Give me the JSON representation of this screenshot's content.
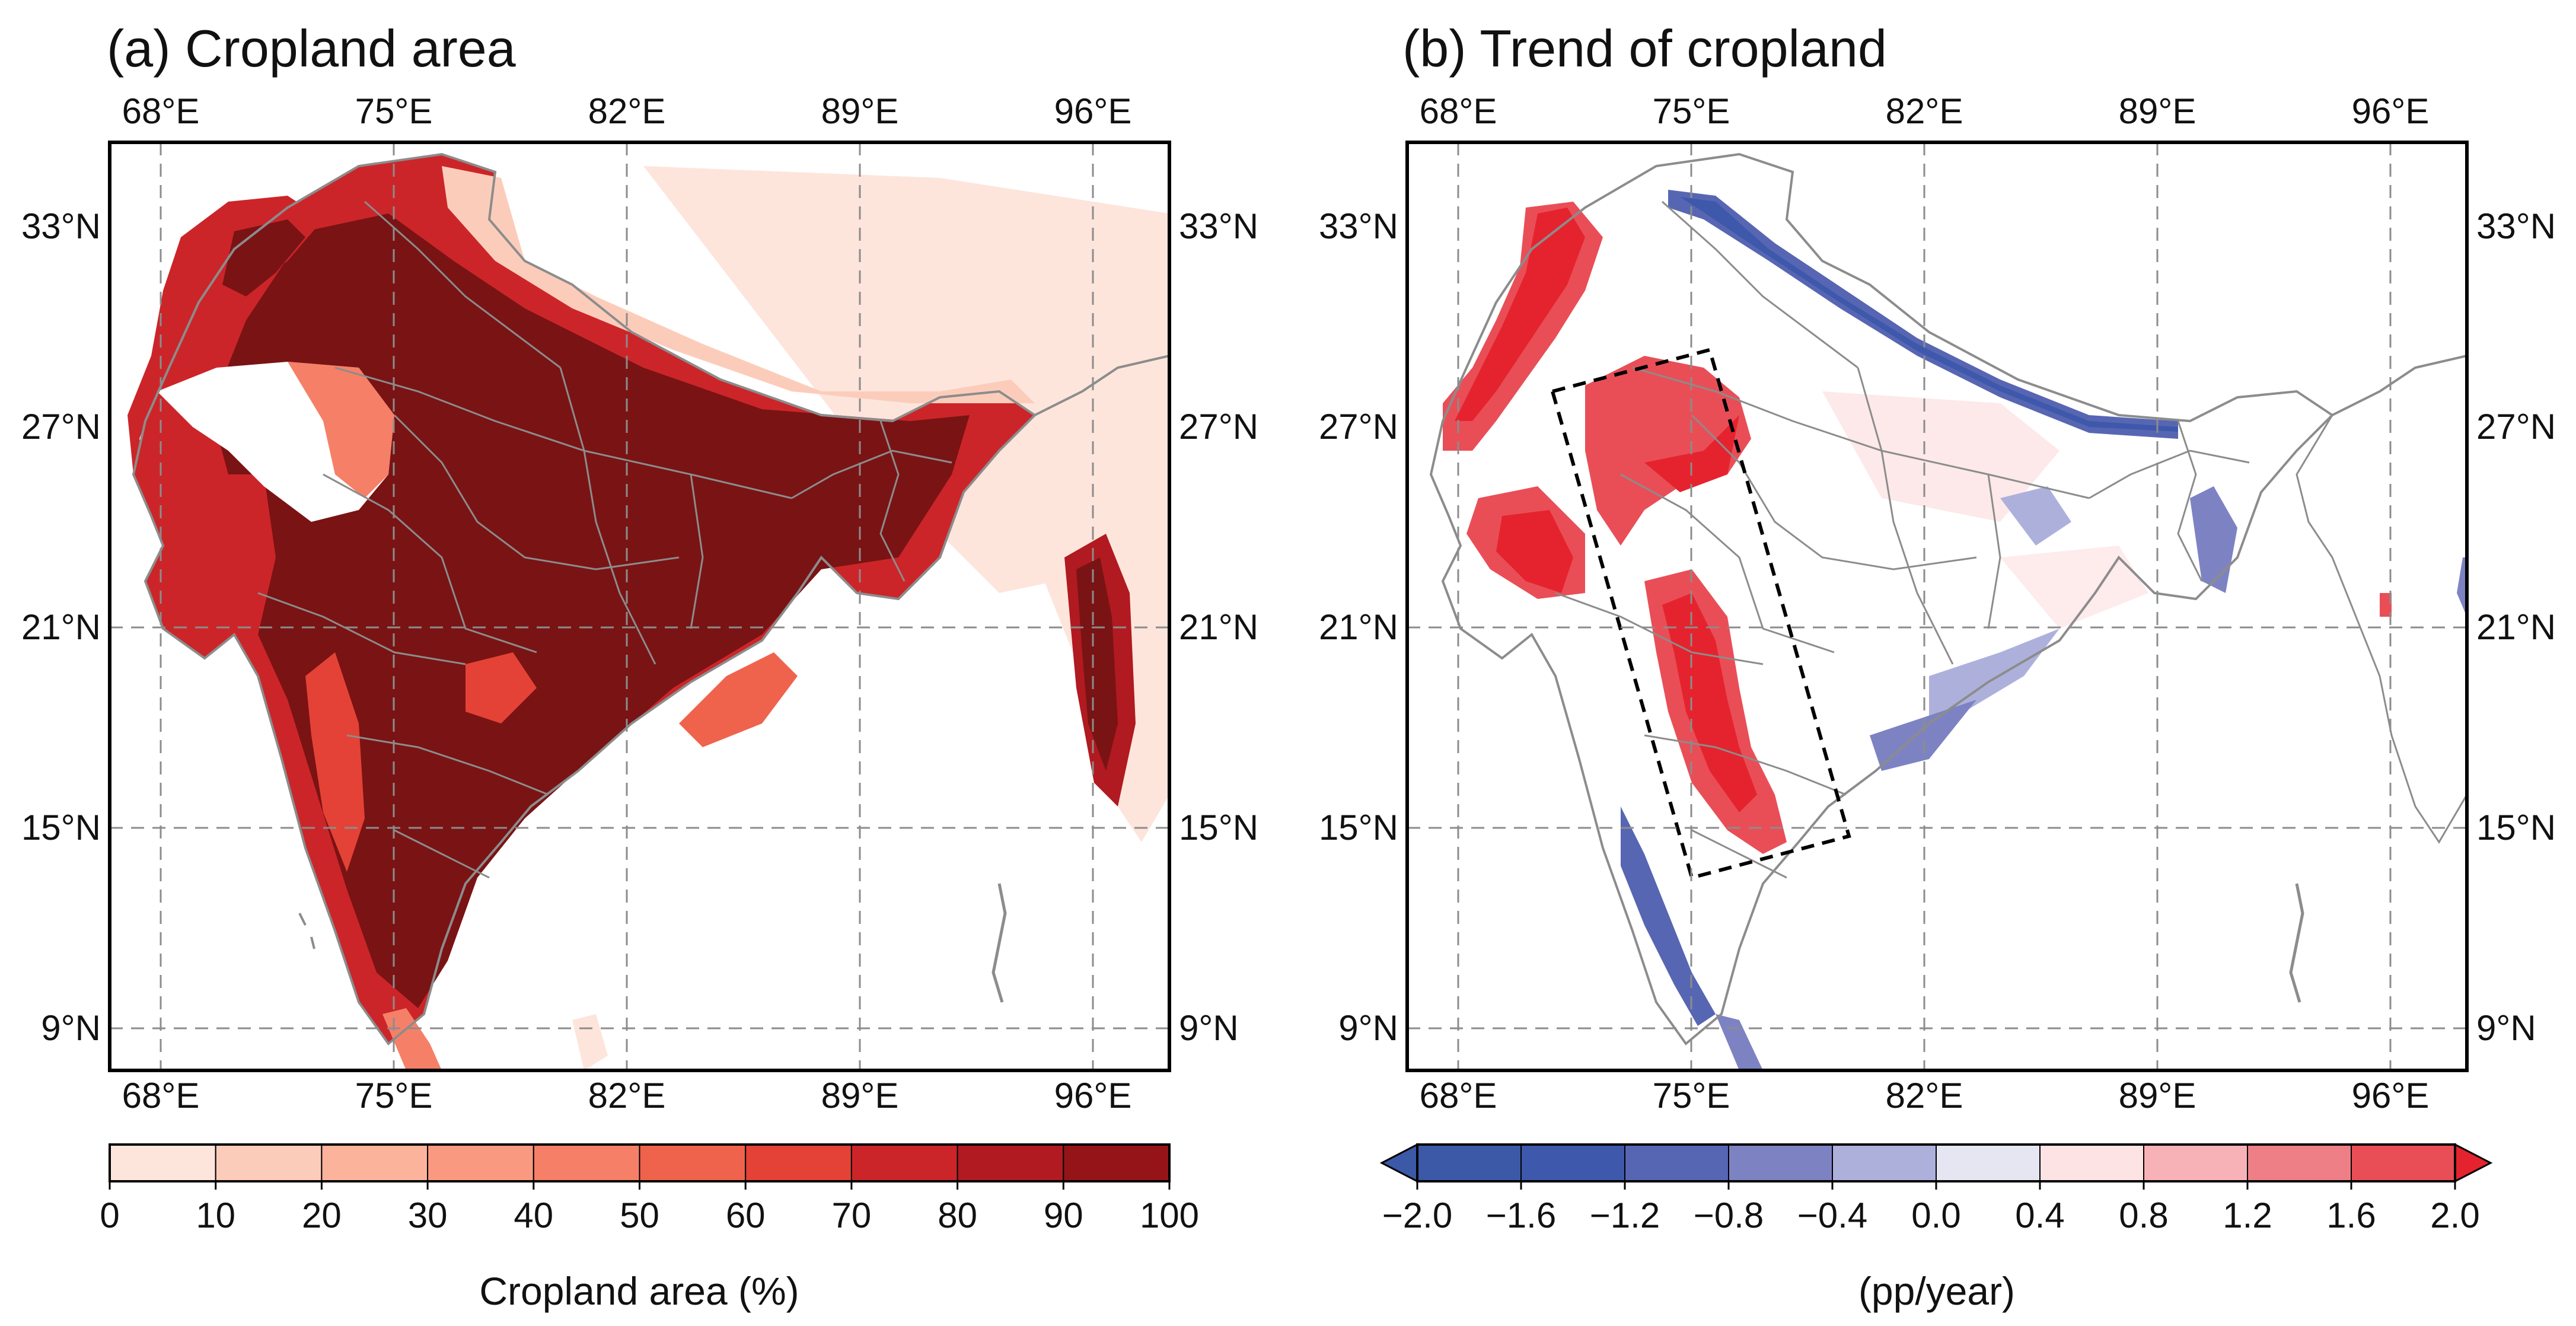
{
  "panels": [
    {
      "id": "a",
      "title": "(a) Cropland area",
      "lon_ticks": [
        "68°E",
        "75°E",
        "82°E",
        "89°E",
        "96°E"
      ],
      "lat_ticks": [
        "33°N",
        "27°N",
        "21°N",
        "15°N",
        "9°N"
      ],
      "colorbar": {
        "label": "Cropland area (%)",
        "ticks": [
          "0",
          "10",
          "20",
          "30",
          "40",
          "50",
          "60",
          "70",
          "80",
          "90",
          "100"
        ],
        "colors": [
          "#fde5dc",
          "#fcccbb",
          "#fbb49b",
          "#f99a80",
          "#f58067",
          "#ef634d",
          "#e44236",
          "#cc2529",
          "#b01a20",
          "#951418",
          "#7a1314"
        ]
      }
    },
    {
      "id": "b",
      "title": "(b) Trend of cropland",
      "lon_ticks": [
        "68°E",
        "75°E",
        "82°E",
        "89°E",
        "96°E"
      ],
      "lat_ticks": [
        "33°N",
        "27°N",
        "21°N",
        "15°N",
        "9°N"
      ],
      "colorbar": {
        "label": "(pp/year)",
        "ticks": [
          "−2.0",
          "−1.6",
          "−1.2",
          "−0.8",
          "−0.4",
          "0.0",
          "0.4",
          "0.8",
          "1.2",
          "1.6",
          "2.0"
        ],
        "colors": [
          "#3b59a7",
          "#3e58ab",
          "#5766b3",
          "#7d83c2",
          "#aeb0dc",
          "#e6e6f3",
          "#fde3e4",
          "#f7b2b8",
          "#ef7f87",
          "#e94e57",
          "#e5232e"
        ]
      }
    }
  ],
  "map_extent": {
    "lon_min": 66.5,
    "lon_max": 97.7,
    "lat_min": 7.9,
    "lat_max": 35.5
  }
}
